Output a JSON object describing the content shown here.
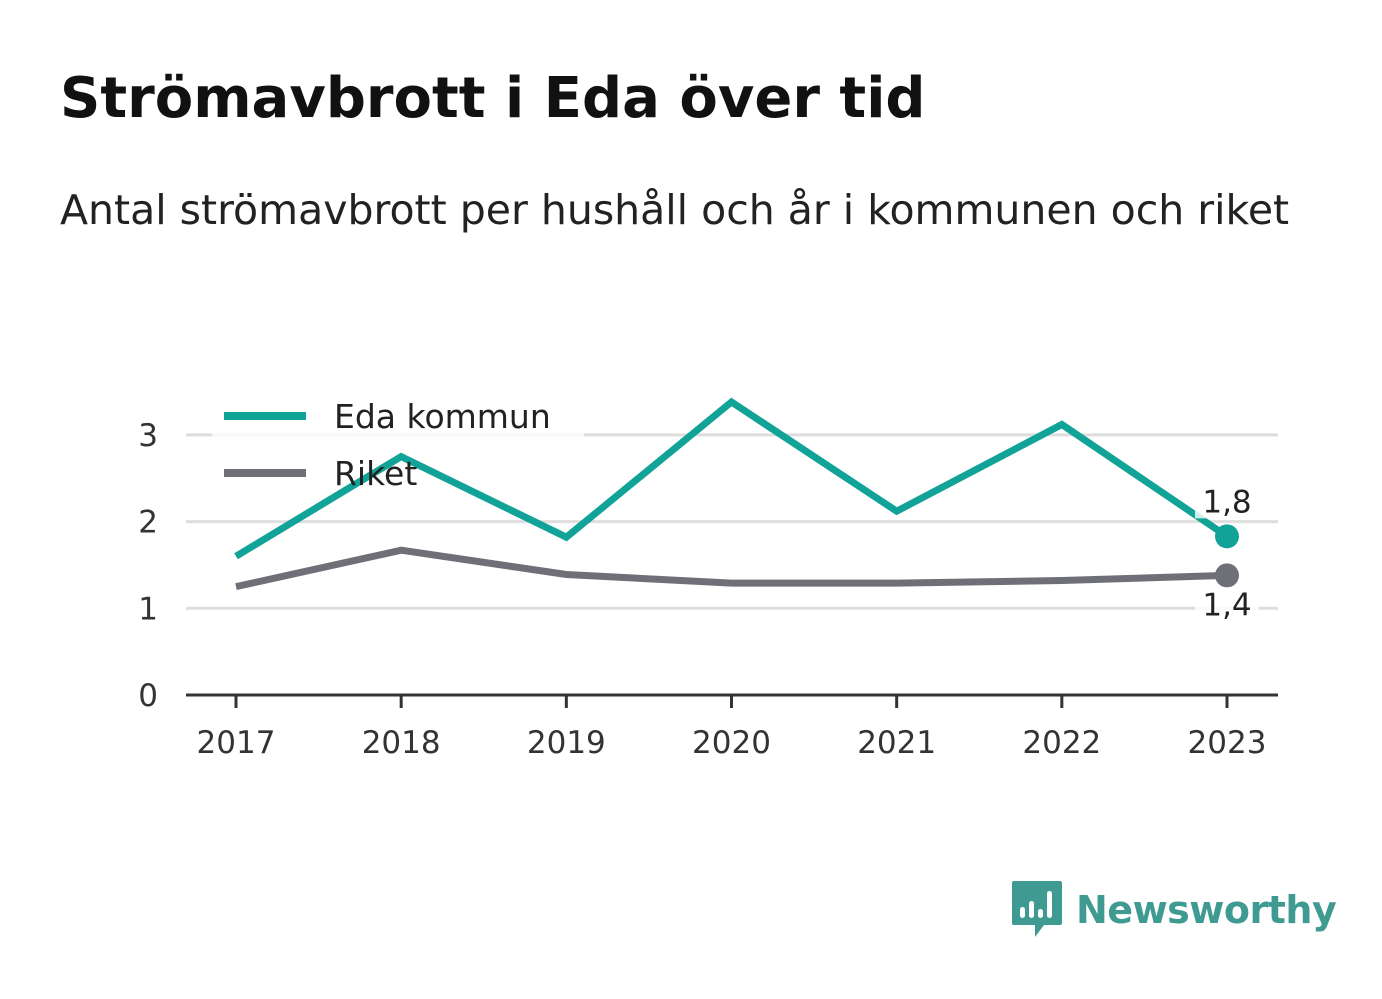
{
  "title": "Strömavbrott i Eda över tid",
  "subtitle": "Antal strömavbrott per hushåll och år i kommunen och riket",
  "brand": {
    "name": "Newsworthy"
  },
  "colors": {
    "eda": "#12a398",
    "riket": "#6f6f78",
    "grid": "#dedede",
    "axis": "#333333",
    "brand": "#3f9b92"
  },
  "chart_data": {
    "type": "line",
    "x": [
      "2017",
      "2018",
      "2019",
      "2020",
      "2021",
      "2022",
      "2023"
    ],
    "series": [
      {
        "name": "Eda kommun",
        "color": "#12a398",
        "values": [
          1.6,
          2.75,
          1.82,
          3.38,
          2.12,
          3.12,
          1.83
        ],
        "end_label": "1,8"
      },
      {
        "name": "Riket",
        "color": "#6f6f78",
        "values": [
          1.25,
          1.67,
          1.39,
          1.29,
          1.29,
          1.32,
          1.38
        ],
        "end_label": "1,4"
      }
    ],
    "y_ticks": [
      "0",
      "1",
      "2",
      "3"
    ],
    "ylim": [
      0,
      3.4
    ],
    "grid": true,
    "legend": "top-left"
  }
}
